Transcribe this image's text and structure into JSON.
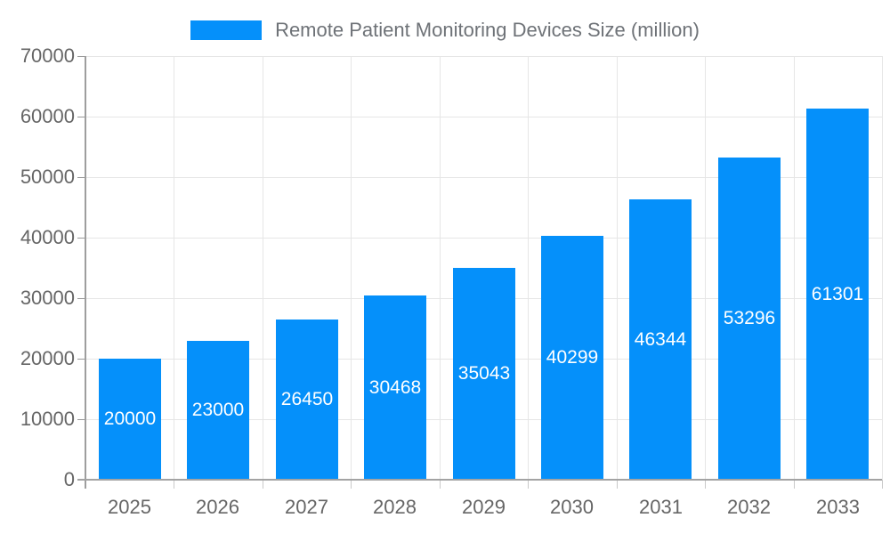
{
  "legend": {
    "label": "Remote Patient Monitoring Devices Size (million)"
  },
  "chart_data": {
    "type": "bar",
    "title": "Remote Patient Monitoring Devices Size (million)",
    "categories": [
      "2025",
      "2026",
      "2027",
      "2028",
      "2029",
      "2030",
      "2031",
      "2032",
      "2033"
    ],
    "values": [
      20000,
      23000,
      26450,
      30468,
      35043,
      40299,
      46344,
      53296,
      61301
    ],
    "value_labels": [
      "20000",
      "23000",
      "26450",
      "30468",
      "35043",
      "40299",
      "46344",
      "53296",
      "61301"
    ],
    "xlabel": "",
    "ylabel": "",
    "ylim": [
      0,
      70000
    ],
    "yticks": [
      0,
      10000,
      20000,
      30000,
      40000,
      50000,
      60000,
      70000
    ],
    "ytick_labels": [
      "0",
      "10000",
      "20000",
      "30000",
      "40000",
      "50000",
      "60000",
      "70000"
    ],
    "grid": true,
    "legend_position": "top-center",
    "value_label_position": "inside-middle"
  },
  "colors": {
    "bar": "#0590fa",
    "bar_value_label": "#ffffff",
    "axis_text": "#666666",
    "legend_text": "#6e7277",
    "gridline": "#e6e6e6",
    "axis_line": "#9e9e9e",
    "background": "#ffffff"
  }
}
